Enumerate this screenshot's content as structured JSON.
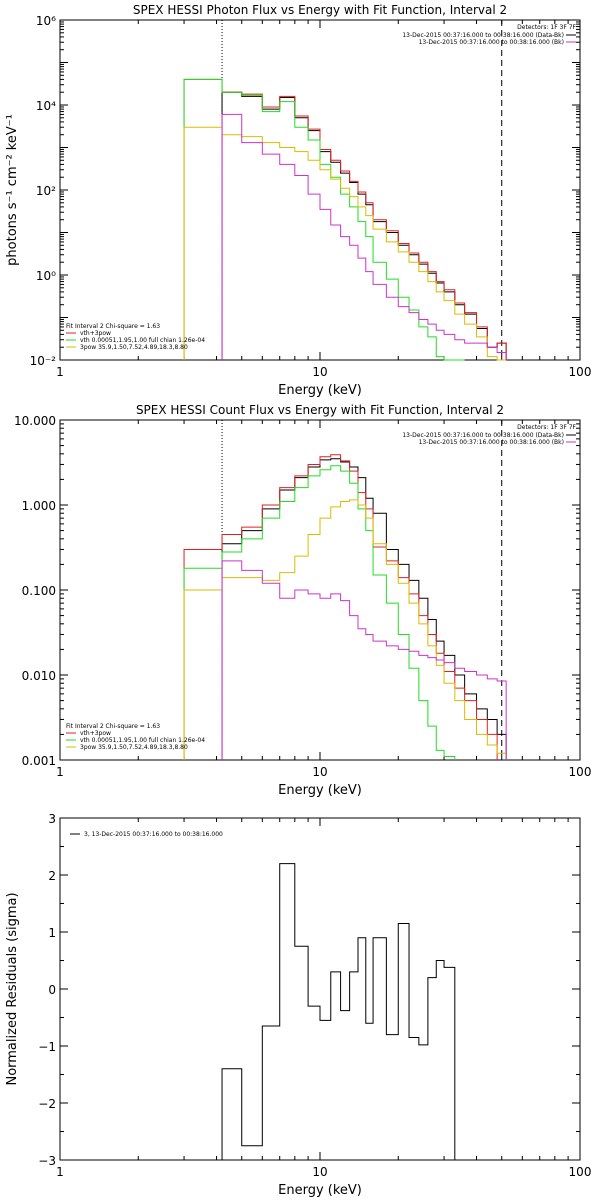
{
  "chart_data": [
    {
      "type": "line",
      "title": "SPEX HESSI Photon Flux vs Energy with Fit Function, Interval 2",
      "xlabel": "Energy (keV)",
      "ylabel": "photons s⁻¹ cm⁻² keV⁻¹",
      "xscale": "log",
      "yscale": "log",
      "xlim": [
        1,
        100
      ],
      "ylim": [
        0.01,
        1000000
      ],
      "x_ticks": [
        {
          "value": 1,
          "label": "1"
        },
        {
          "value": 10,
          "label": "10"
        },
        {
          "value": 100,
          "label": "100"
        }
      ],
      "y_ticks": [
        {
          "value": 0.01,
          "label": "10⁻²"
        },
        {
          "value": 1,
          "label": "10⁰"
        },
        {
          "value": 100,
          "label": "10²"
        },
        {
          "value": 10000,
          "label": "10⁴"
        },
        {
          "value": 1000000,
          "label": "10⁶"
        }
      ],
      "vlines": [
        {
          "x": 4.2,
          "style": "dotted"
        },
        {
          "x": 50,
          "style": "dashed"
        }
      ],
      "legend_top_right": {
        "detectors": "Detectors: 1F 3F 7F",
        "entries": [
          {
            "text": "13-Dec-2015 00:37:16.000 to 00:38:16.000 (Data-Bk)",
            "color": "#000000"
          },
          {
            "text": "13-Dec-2015 00:37:16.000 to 00:38:16.000 (Bk)",
            "color": "#cc33cc"
          }
        ]
      },
      "legend_bottom_left": {
        "header": "Fit Interval  2   Chi-square = 1.63",
        "entries": [
          {
            "text": "vth+3pow",
            "color": "#e02020"
          },
          {
            "text": "vth 0.00051,1.95,1.00  full chian 1.26e-04",
            "color": "#22dd22"
          },
          {
            "text": "3pow 35.9,1.50,7.52,4.89,18.3,8.80",
            "color": "#ddbb00"
          }
        ]
      },
      "bin_edges": [
        3,
        4.2,
        5,
        6,
        7,
        8,
        9,
        10,
        11,
        12,
        13,
        14,
        15,
        16,
        18,
        20,
        22,
        24,
        26,
        28,
        30,
        33,
        36,
        40,
        44,
        48,
        52
      ],
      "series": [
        {
          "name": "",
          "color": "#000000",
          "start": 1,
          "values": [
            20000,
            16000,
            8000,
            15000,
            5000,
            2500,
            800,
            450,
            250,
            150,
            80,
            45,
            18,
            10,
            5,
            3,
            1.8,
            1.1,
            0.65,
            0.4,
            0.2,
            0.12,
            0.055,
            0.02,
            0.025
          ]
        },
        {
          "name": "",
          "color": "#e02020",
          "start": 0,
          "values": [
            40000,
            20000,
            18000,
            9000,
            16000,
            5500,
            2700,
            900,
            500,
            280,
            160,
            90,
            50,
            20,
            11,
            5.5,
            3.3,
            2,
            1.2,
            0.7,
            0.45,
            0.22,
            0.13,
            0.06,
            0.02,
            0.025
          ]
        },
        {
          "name": "",
          "color": "#22dd22",
          "start": 0,
          "values": [
            40000,
            20000,
            17000,
            7000,
            12000,
            3000,
            1500,
            400,
            200,
            80,
            40,
            18,
            8,
            2,
            0.8,
            0.3,
            0.15,
            0.06,
            0.035,
            0.012,
            0.01,
            0.01
          ]
        },
        {
          "name": "",
          "color": "#ddbb00",
          "start": 0,
          "values": [
            3000,
            2000,
            1800,
            1300,
            1000,
            800,
            500,
            300,
            180,
            110,
            70,
            40,
            25,
            12,
            6,
            3.5,
            2,
            1.2,
            0.7,
            0.4,
            0.25,
            0.12,
            0.07,
            0.035,
            0.012,
            0.01
          ]
        },
        {
          "name": "",
          "color": "#cc33cc",
          "start": 1,
          "values": [
            6000,
            1300,
            700,
            400,
            220,
            80,
            35,
            15,
            8,
            5,
            2.5,
            1.2,
            0.6,
            0.3,
            0.18,
            0.13,
            0.09,
            0.07,
            0.05,
            0.04,
            0.03,
            0.025,
            0.025,
            0.02,
            0.015
          ]
        }
      ]
    },
    {
      "type": "line",
      "title": "SPEX HESSI Count Flux vs Energy with Fit Function, Interval 2",
      "xlabel": "Energy (keV)",
      "ylabel": "",
      "xscale": "log",
      "yscale": "log",
      "xlim": [
        1,
        100
      ],
      "ylim": [
        0.001,
        10
      ],
      "x_ticks": [
        {
          "value": 1,
          "label": "1"
        },
        {
          "value": 10,
          "label": "10"
        },
        {
          "value": 100,
          "label": "100"
        }
      ],
      "y_ticks": [
        {
          "value": 0.001,
          "label": "0.001"
        },
        {
          "value": 0.01,
          "label": "0.010"
        },
        {
          "value": 0.1,
          "label": "0.100"
        },
        {
          "value": 1,
          "label": "1.000"
        },
        {
          "value": 10,
          "label": "10.000"
        }
      ],
      "vlines": [
        {
          "x": 4.2,
          "style": "dotted"
        },
        {
          "x": 50,
          "style": "dashed"
        }
      ],
      "legend_top_right": {
        "detectors": "Detectors: 1F 3F 7F",
        "entries": [
          {
            "text": "13-Dec-2015 00:37:16.000 to 00:38:16.000 (Data-Bk)",
            "color": "#000000"
          },
          {
            "text": "13-Dec-2015 00:37:16.000 to 00:38:16.000 (Bk)",
            "color": "#cc33cc"
          }
        ]
      },
      "legend_bottom_left": {
        "header": "Fit Interval  2   Chi-square = 1.63",
        "entries": [
          {
            "text": "vth+3pow",
            "color": "#e02020"
          },
          {
            "text": "vth 0.00051,1.95,1.00  full chian 1.26e-04",
            "color": "#22dd22"
          },
          {
            "text": "3pow 35.9,1.50,7.52,4.89,18.3,8.80",
            "color": "#ddbb00"
          }
        ]
      },
      "bin_edges": [
        3,
        4.2,
        5,
        6,
        7,
        8,
        9,
        10,
        11,
        12,
        13,
        14,
        15,
        16,
        18,
        20,
        22,
        24,
        26,
        28,
        30,
        33,
        36,
        40,
        44,
        48,
        52
      ],
      "series": [
        {
          "name": "",
          "color": "#000000",
          "start": 1,
          "values": [
            0.35,
            0.5,
            0.9,
            1.5,
            2.1,
            2.8,
            3.4,
            3.5,
            3.2,
            2.8,
            2.1,
            1.2,
            0.8,
            0.3,
            0.2,
            0.13,
            0.08,
            0.045,
            0.025,
            0.017,
            0.01,
            0.006,
            0.004,
            0.003,
            0.002
          ]
        },
        {
          "name": "",
          "color": "#e02020",
          "start": 0,
          "values": [
            0.3,
            0.45,
            0.55,
            1.0,
            1.6,
            2.2,
            3.0,
            3.7,
            3.9,
            3.3,
            2.5,
            1.4,
            0.9,
            0.32,
            0.22,
            0.14,
            0.09,
            0.05,
            0.03,
            0.018,
            0.011,
            0.007,
            0.005,
            0.003,
            0.002
          ]
        },
        {
          "name": "",
          "color": "#22dd22",
          "start": 0,
          "values": [
            0.18,
            0.28,
            0.4,
            0.7,
            1.1,
            1.6,
            2.2,
            2.6,
            2.9,
            2.5,
            1.8,
            0.9,
            0.5,
            0.15,
            0.07,
            0.03,
            0.012,
            0.005,
            0.0025,
            0.0013,
            0.0011
          ]
        },
        {
          "name": "",
          "color": "#ddbb00",
          "start": 0,
          "values": [
            0.1,
            0.14,
            0.14,
            0.13,
            0.16,
            0.25,
            0.45,
            0.7,
            0.95,
            1.1,
            1.15,
            1.0,
            0.7,
            0.35,
            0.2,
            0.12,
            0.07,
            0.04,
            0.022,
            0.013,
            0.008,
            0.005,
            0.003,
            0.002,
            0.0015,
            0.0012
          ]
        },
        {
          "name": "",
          "color": "#cc33cc",
          "start": 1,
          "values": [
            0.22,
            0.17,
            0.12,
            0.08,
            0.1,
            0.09,
            0.08,
            0.09,
            0.075,
            0.05,
            0.035,
            0.03,
            0.025,
            0.022,
            0.02,
            0.019,
            0.017,
            0.016,
            0.015,
            0.014,
            0.012,
            0.011,
            0.01,
            0.009,
            0.0085
          ]
        }
      ]
    },
    {
      "type": "line",
      "title": "",
      "xlabel": "Energy (keV)",
      "ylabel": "Normalized Residuals (sigma)",
      "xscale": "log",
      "yscale": "linear",
      "xlim": [
        1,
        100
      ],
      "ylim": [
        -3,
        3
      ],
      "x_ticks": [
        {
          "value": 1,
          "label": "1"
        },
        {
          "value": 10,
          "label": "10"
        },
        {
          "value": 100,
          "label": "100"
        }
      ],
      "y_ticks": [
        {
          "value": -3,
          "label": "−3"
        },
        {
          "value": -2,
          "label": "−2"
        },
        {
          "value": -1,
          "label": "−1"
        },
        {
          "value": 0,
          "label": "0"
        },
        {
          "value": 1,
          "label": "1"
        },
        {
          "value": 2,
          "label": "2"
        },
        {
          "value": 3,
          "label": "3"
        }
      ],
      "vlines": [],
      "legend_top_left": {
        "entries": [
          {
            "text": "3, 13-Dec-2015 00:37:16.000 to 00:38:16.000",
            "color": "#000000"
          }
        ]
      },
      "bin_edges": [
        4.2,
        5,
        6,
        7,
        8,
        9,
        10,
        11,
        12,
        13,
        14,
        15,
        16,
        18,
        20,
        22,
        24,
        26,
        28,
        30,
        33,
        36,
        40,
        44,
        48,
        52
      ],
      "series": [
        {
          "name": "",
          "color": "#000000",
          "start": 0,
          "values": [
            -1.4,
            -2.75,
            -0.65,
            2.2,
            0.75,
            -0.3,
            -0.55,
            0.3,
            -0.38,
            0.3,
            0.9,
            -0.6,
            0.9,
            -0.8,
            1.15,
            -0.85,
            -0.98,
            0.2,
            0.5,
            0.38
          ]
        }
      ]
    }
  ]
}
